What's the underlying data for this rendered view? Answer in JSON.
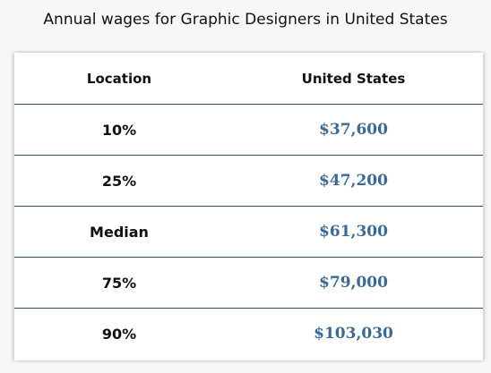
{
  "title": "Annual wages for Graphic Designers in United States",
  "table": {
    "headers": [
      "Location",
      "United States"
    ],
    "rows": [
      {
        "label": "10%",
        "value": "$37,600"
      },
      {
        "label": "25%",
        "value": "$47,200"
      },
      {
        "label": "Median",
        "value": "$61,300"
      },
      {
        "label": "75%",
        "value": "$79,000"
      },
      {
        "label": "90%",
        "value": "$103,030"
      }
    ]
  },
  "colors": {
    "value_text": "#3a6a93",
    "row_divider": "#2f4f63",
    "background": "#f7f7f7"
  },
  "chart_data": {
    "type": "table",
    "title": "Annual wages for Graphic Designers in United States",
    "columns": [
      "Location",
      "United States"
    ],
    "rows": [
      [
        "10%",
        "$37,600"
      ],
      [
        "25%",
        "$47,200"
      ],
      [
        "Median",
        "$61,300"
      ],
      [
        "75%",
        "$79,000"
      ],
      [
        "90%",
        "$103,030"
      ]
    ]
  }
}
